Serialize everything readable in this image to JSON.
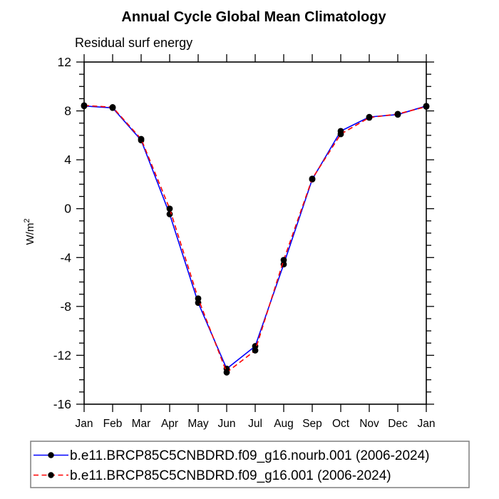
{
  "title": "Annual Cycle Global Mean Climatology",
  "subtitle": "Residual surf energy",
  "y_axis_label": "W/m",
  "y_axis_label_sup": "2",
  "colors": {
    "axis": "#000000",
    "marker": "#000000",
    "legend_border": "#7f7f7f",
    "series_blue": "#0000ff",
    "series_red": "#ff0000"
  },
  "chart_data": {
    "type": "line",
    "title": "Annual Cycle Global Mean Climatology",
    "subtitle": "Residual surf energy",
    "xlabel": "",
    "ylabel": "W/m^2",
    "categories": [
      "Jan",
      "Feb",
      "Mar",
      "Apr",
      "May",
      "Jun",
      "Jul",
      "Aug",
      "Sep",
      "Oct",
      "Nov",
      "Dec",
      "Jan"
    ],
    "series": [
      {
        "name": "b.e11.BRCP85C5CNBDRD.f09_g16.nourb.001 (2006-2024)",
        "color": "#0000ff",
        "line_style": "solid",
        "marker": "filled-black-circle",
        "values": [
          8.4,
          8.25,
          5.6,
          -0.45,
          -7.7,
          -13.1,
          -11.25,
          -4.55,
          2.4,
          6.35,
          7.5,
          7.7,
          8.4
        ]
      },
      {
        "name": "b.e11.BRCP85C5CNBDRD.f09_g16.001 (2006-2024)",
        "color": "#ff0000",
        "line_style": "dashed",
        "marker": "filled-black-circle",
        "values": [
          8.45,
          8.3,
          5.7,
          0.0,
          -7.35,
          -13.4,
          -11.6,
          -4.2,
          2.45,
          6.1,
          7.45,
          7.75,
          8.35
        ]
      }
    ],
    "ylim": [
      -16,
      12
    ],
    "ytick_major": [
      -16,
      -12,
      -8,
      -4,
      0,
      4,
      8,
      12
    ],
    "ytick_minor_step": 1,
    "grid": false,
    "legend_position": "bottom-box"
  }
}
